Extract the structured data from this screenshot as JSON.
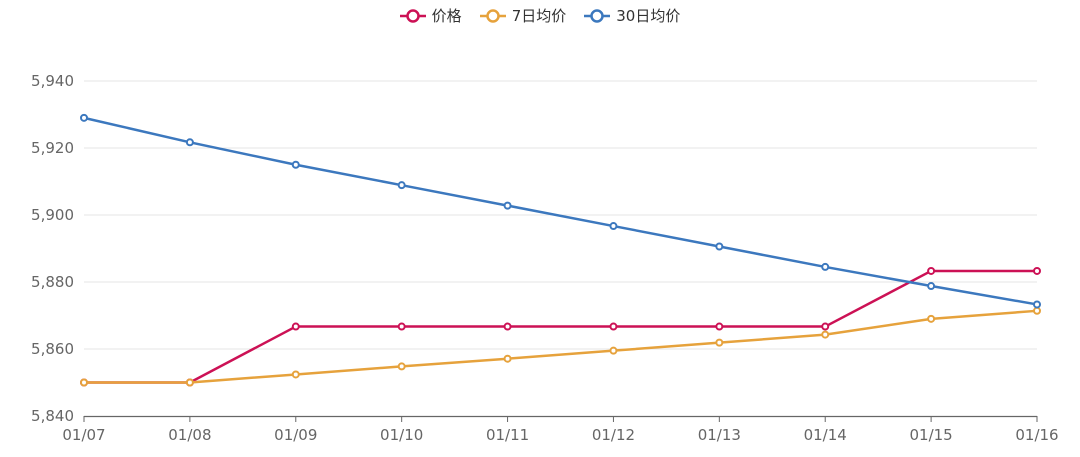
{
  "colors": {
    "price": "#cc1155",
    "ma7": "#e6a23c",
    "ma30": "#3c78be",
    "grid": "#e6e6e6",
    "axis": "#666666",
    "tick_text": "#666666"
  },
  "chart_data": {
    "type": "line",
    "title": "",
    "xlabel": "",
    "ylabel": "",
    "categories": [
      "01/07",
      "01/08",
      "01/09",
      "01/10",
      "01/11",
      "01/12",
      "01/13",
      "01/14",
      "01/15",
      "01/16"
    ],
    "ylim": [
      5840,
      5940
    ],
    "yticks": [
      5840,
      5860,
      5880,
      5900,
      5920,
      5940
    ],
    "ytick_labels": [
      "5,840",
      "5,860",
      "5,880",
      "5,900",
      "5,920",
      "5,940"
    ],
    "grid": true,
    "legend_position": "top-center",
    "series": [
      {
        "key": "price",
        "name": "价格",
        "color": "#cc1155",
        "values": [
          5850,
          5850,
          5866.7,
          5866.7,
          5866.7,
          5866.7,
          5866.7,
          5866.7,
          5883.3,
          5883.3
        ]
      },
      {
        "key": "ma7",
        "name": "7日均价",
        "color": "#e6a23c",
        "values": [
          5850,
          5850,
          5852.4,
          5854.8,
          5857.1,
          5859.5,
          5861.9,
          5864.3,
          5869.0,
          5871.4
        ]
      },
      {
        "key": "ma30",
        "name": "30日均价",
        "color": "#3c78be",
        "values": [
          5929,
          5921.7,
          5915,
          5908.9,
          5902.8,
          5896.7,
          5890.6,
          5884.5,
          5878.8,
          5873.3
        ]
      }
    ]
  }
}
